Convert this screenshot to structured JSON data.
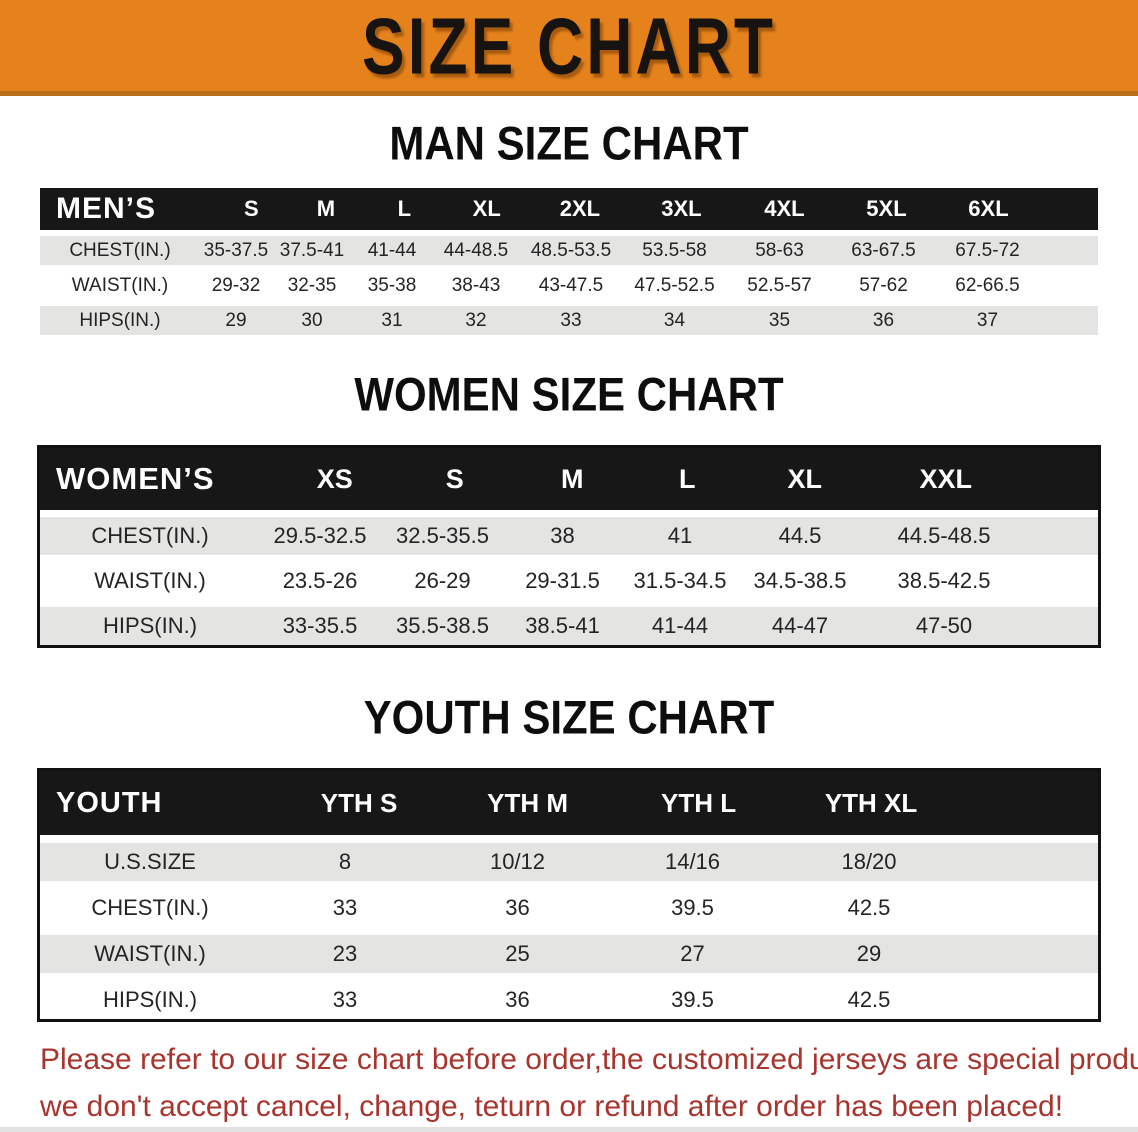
{
  "banner": {
    "title": "SIZE CHART"
  },
  "colors": {
    "banner_orange": "#e5821c",
    "banner_shadow": "#b96f1a",
    "table_header_black": "#171717",
    "row_gray": "#e4e4e2",
    "row_white": "#ffffff",
    "heading_black": "#0d0d0d",
    "disclaimer_red": "#a8342e"
  },
  "disclaimer": {
    "lines": [
      "Please refer to our size chart before order,the customized jerseys are special products,",
      "we don't accept cancel, change, teturn or refund after order has been placed!"
    ]
  },
  "chart_data": [
    {
      "type": "table",
      "id": "men",
      "title": "MAN SIZE CHART",
      "header_label": "MEN’S",
      "columns": [
        "S",
        "M",
        "L",
        "XL",
        "2XL",
        "3XL",
        "4XL",
        "5XL",
        "6XL"
      ],
      "rows": [
        {
          "label": "CHEST(IN.)",
          "values": [
            "35-37.5",
            "37.5-41",
            "41-44",
            "44-48.5",
            "48.5-53.5",
            "53.5-58",
            "58-63",
            "63-67.5",
            "67.5-72"
          ]
        },
        {
          "label": "WAIST(IN.)",
          "values": [
            "29-32",
            "32-35",
            "35-38",
            "38-43",
            "43-47.5",
            "47.5-52.5",
            "52.5-57",
            "57-62",
            "62-66.5"
          ]
        },
        {
          "label": "HIPS(IN.)",
          "values": [
            "29",
            "30",
            "31",
            "32",
            "33",
            "34",
            "35",
            "36",
            "37"
          ]
        }
      ]
    },
    {
      "type": "table",
      "id": "women",
      "title": "WOMEN SIZE CHART",
      "header_label": "WOMEN’S",
      "columns": [
        "XS",
        "S",
        "M",
        "L",
        "XL",
        "XXL"
      ],
      "rows": [
        {
          "label": "CHEST(IN.)",
          "values": [
            "29.5-32.5",
            "32.5-35.5",
            "38",
            "41",
            "44.5",
            "44.5-48.5"
          ]
        },
        {
          "label": "WAIST(IN.)",
          "values": [
            "23.5-26",
            "26-29",
            "29-31.5",
            "31.5-34.5",
            "34.5-38.5",
            "38.5-42.5"
          ]
        },
        {
          "label": "HIPS(IN.)",
          "values": [
            "33-35.5",
            "35.5-38.5",
            "38.5-41",
            "41-44",
            "44-47",
            "47-50"
          ]
        }
      ]
    },
    {
      "type": "table",
      "id": "youth",
      "title": "YOUTH SIZE CHART",
      "header_label": "YOUTH",
      "columns": [
        "YTH S",
        "YTH M",
        "YTH L",
        "YTH XL"
      ],
      "rows": [
        {
          "label": "U.S.SIZE",
          "values": [
            "8",
            "10/12",
            "14/16",
            "18/20"
          ]
        },
        {
          "label": "CHEST(IN.)",
          "values": [
            "33",
            "36",
            "39.5",
            "42.5"
          ]
        },
        {
          "label": "WAIST(IN.)",
          "values": [
            "23",
            "25",
            "27",
            "29"
          ]
        },
        {
          "label": "HIPS(IN.)",
          "values": [
            "33",
            "36",
            "39.5",
            "42.5"
          ]
        }
      ]
    }
  ]
}
